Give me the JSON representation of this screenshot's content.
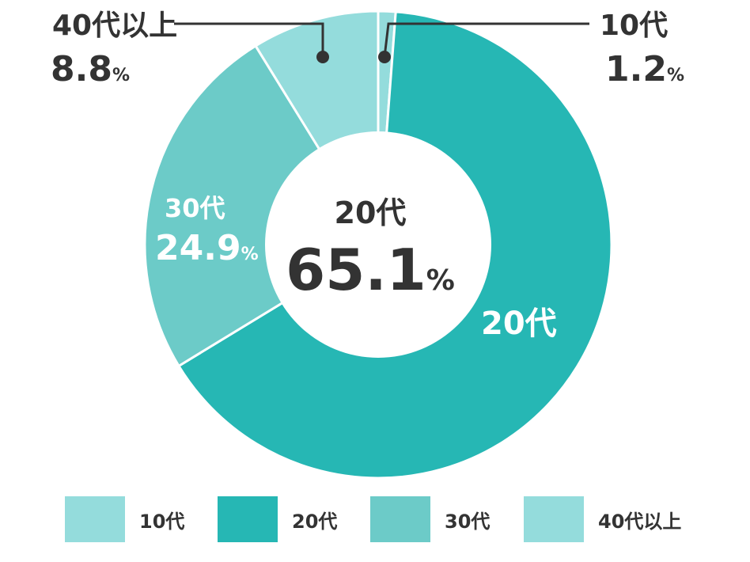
{
  "chart_data": {
    "type": "pie",
    "categories": [
      "10代",
      "20代",
      "30代",
      "40代以上"
    ],
    "values": [
      1.2,
      65.1,
      24.9,
      8.8
    ],
    "unit": "%",
    "colors": [
      "#94dcdc",
      "#26b7b4",
      "#6ccbc8",
      "#94dcdc"
    ],
    "center": {
      "label": "20代",
      "value": "65.1",
      "unit": "%"
    },
    "slice_labels": {
      "s10": {
        "label": "10代",
        "value": "1.2",
        "unit": "%"
      },
      "s20": {
        "label": "20代"
      },
      "s30": {
        "label": "30代",
        "value": "24.9",
        "unit": "%"
      },
      "s40": {
        "label": "40代以上",
        "value": "8.8",
        "unit": "%"
      }
    },
    "legend": [
      {
        "label": "10代",
        "color": "#94dcdc"
      },
      {
        "label": "20代",
        "color": "#26b7b4"
      },
      {
        "label": "30代",
        "color": "#6ccbc8"
      },
      {
        "label": "40代以上",
        "color": "#94dcdc"
      }
    ],
    "legend_position": "bottom"
  }
}
